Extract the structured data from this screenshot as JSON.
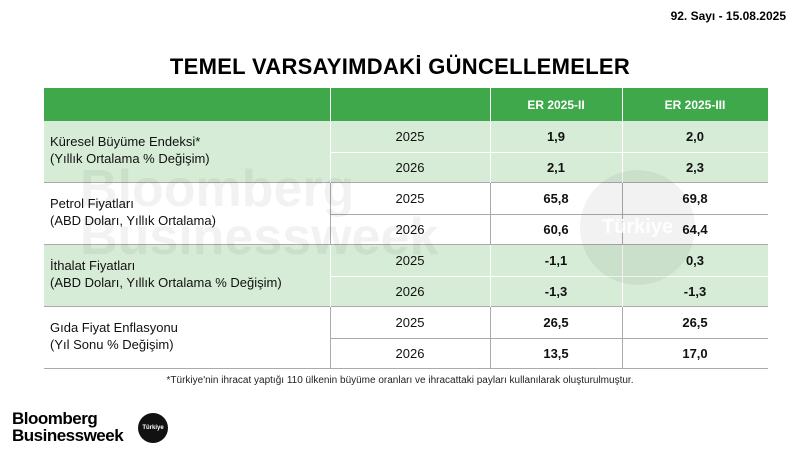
{
  "issue": "92. Sayı - 15.08.2025",
  "title": "TEMEL VARSAYIMDAKİ GÜNCELLEMELER",
  "table": {
    "columns": [
      "ER 2025-II",
      "ER 2025-III"
    ],
    "groups": [
      {
        "label": [
          "Küresel Büyüme Endeksi*",
          "(Yıllık Ortalama % Değişim)"
        ],
        "rows": [
          {
            "year": "2025",
            "values": [
              "1,9",
              "2,0"
            ]
          },
          {
            "year": "2026",
            "values": [
              "2,1",
              "2,3"
            ]
          }
        ]
      },
      {
        "label": [
          "Petrol Fiyatları",
          "(ABD Doları, Yıllık Ortalama)"
        ],
        "rows": [
          {
            "year": "2025",
            "values": [
              "65,8",
              "69,8"
            ]
          },
          {
            "year": "2026",
            "values": [
              "60,6",
              "64,4"
            ]
          }
        ]
      },
      {
        "label": [
          "İthalat Fiyatları",
          "(ABD Doları, Yıllık Ortalama % Değişim)"
        ],
        "rows": [
          {
            "year": "2025",
            "values": [
              "-1,1",
              "0,3"
            ]
          },
          {
            "year": "2026",
            "values": [
              "-1,3",
              "-1,3"
            ]
          }
        ]
      },
      {
        "label": [
          "Gıda Fiyat Enflasyonu",
          "(Yıl Sonu % Değişim)"
        ],
        "rows": [
          {
            "year": "2025",
            "values": [
              "26,5",
              "26,5"
            ]
          },
          {
            "year": "2026",
            "values": [
              "13,5",
              "17,0"
            ]
          }
        ]
      }
    ]
  },
  "footnote": "*Türkiye'nin ihracat yaptığı 110 ülkenin büyüme oranları ve ihracattaki payları kullanılarak oluşturulmuştur.",
  "watermark": [
    "Bloomberg",
    "Businessweek",
    "Türkiye"
  ],
  "brand": {
    "lines": [
      "Bloomberg",
      "Businessweek"
    ],
    "badge": "Türkiye"
  }
}
